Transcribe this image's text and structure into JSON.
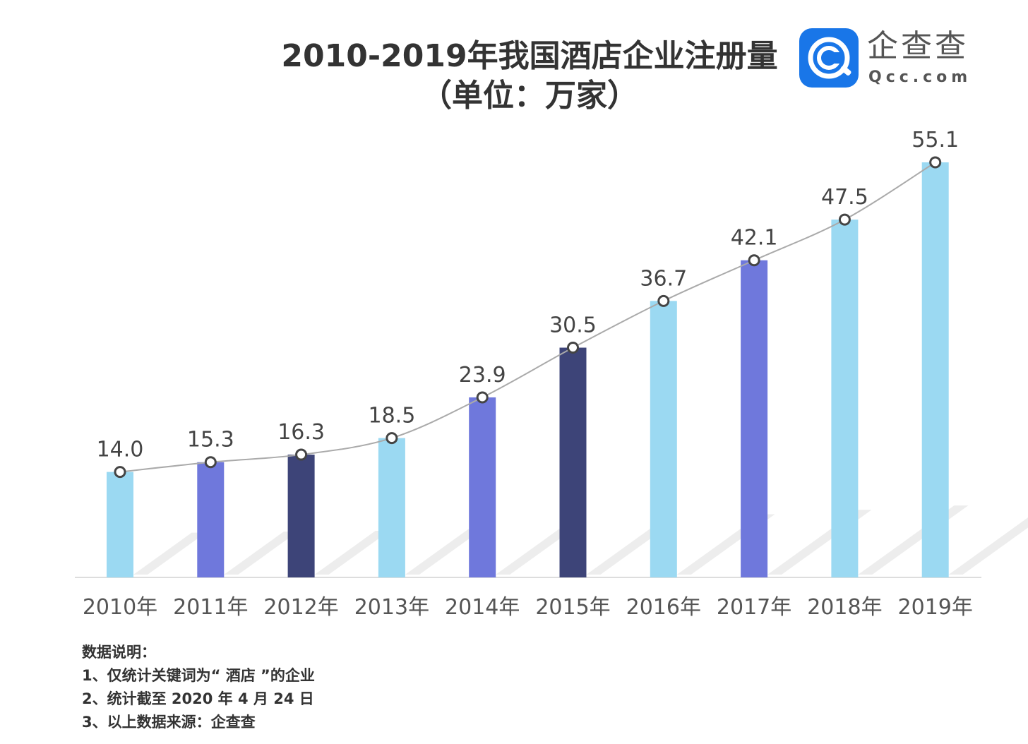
{
  "title_line1": "2010-2019年我国酒店企业注册量",
  "title_line2": "（单位：万家）",
  "logo": {
    "icon": "qcc-logo-icon",
    "name": "企查查",
    "domain": "Qcc.com",
    "color": "#1976e8"
  },
  "chart_data": {
    "type": "bar",
    "title": "2010-2019年我国酒店企业注册量",
    "subtitle": "（单位：万家）",
    "categories": [
      "2010年",
      "2011年",
      "2012年",
      "2013年",
      "2014年",
      "2015年",
      "2016年",
      "2017年",
      "2018年",
      "2019年"
    ],
    "values": [
      14.0,
      15.3,
      16.3,
      18.5,
      23.9,
      30.5,
      36.7,
      42.1,
      47.5,
      55.1
    ],
    "data_labels": [
      "14.0",
      "15.3",
      "16.3",
      "18.5",
      "23.9",
      "30.5",
      "36.7",
      "42.1",
      "47.5",
      "55.1"
    ],
    "bar_colors": [
      "#9bd9f2",
      "#6f78dc",
      "#3d4478",
      "#9bd9f2",
      "#6f78dc",
      "#3d4478",
      "#9bd9f2",
      "#6f78dc",
      "#9bd9f2",
      "#9bd9f2"
    ],
    "overlay": "line",
    "line_color": "#aaaaaa",
    "ylim": [
      0,
      55.1
    ],
    "grid": false,
    "legend": "none"
  },
  "notes": {
    "heading": "数据说明：",
    "items": [
      "1、仅统计关键词为“ 酒店 ”的企业",
      "2、统计截至 2020 年 4 月 24 日",
      "3、以上数据来源：企查查"
    ]
  }
}
